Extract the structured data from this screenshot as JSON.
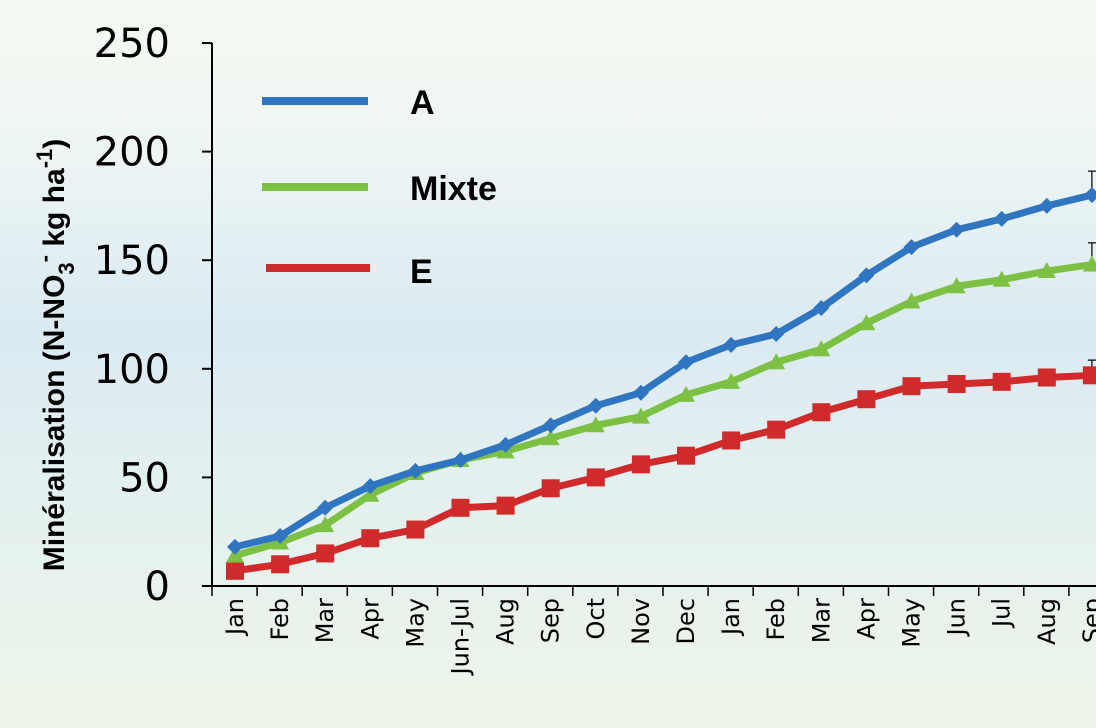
{
  "chart_data": {
    "type": "line",
    "title": "",
    "ylabel": "Minéralisation (N-NO",
    "ylabel_sub": "3",
    "ylabel_sup1": "-",
    "ylabel_mid": " kg ha",
    "ylabel_sup2": "-1",
    "ylabel_end": ")",
    "xlabel": "",
    "ylim": [
      0,
      250
    ],
    "yticks": [
      "0",
      "50",
      "100",
      "150",
      "200",
      "250"
    ],
    "categories": [
      "Jan",
      "Feb",
      "Mar",
      "Apr",
      "May",
      "Jun-Jul",
      "Aug",
      "Sep",
      "Oct",
      "Nov",
      "Dec",
      "Jan",
      "Feb",
      "Mar",
      "Apr",
      "May",
      "Jun",
      "Jul",
      "Aug",
      "Sep"
    ],
    "grid": false,
    "legend_position": "top-left",
    "series": [
      {
        "name": "A",
        "color": "#2f75c0",
        "marker": "diamond",
        "values": [
          18,
          23,
          36,
          46,
          53,
          58,
          65,
          74,
          83,
          89,
          103,
          111,
          116,
          128,
          143,
          156,
          164,
          169,
          175,
          180
        ],
        "error_last": 11
      },
      {
        "name": "Mixte",
        "color": "#7cc143",
        "marker": "triangle",
        "values": [
          14,
          20,
          28,
          42,
          52,
          58,
          62,
          68,
          74,
          78,
          88,
          94,
          103,
          109,
          121,
          131,
          138,
          141,
          145,
          148
        ],
        "error_last": 10
      },
      {
        "name": "E",
        "color": "#d02a2a",
        "marker": "square",
        "values": [
          7,
          10,
          15,
          22,
          26,
          36,
          37,
          45,
          50,
          56,
          60,
          67,
          72,
          80,
          86,
          92,
          93,
          94,
          96,
          97
        ],
        "error_last": 7
      }
    ]
  }
}
